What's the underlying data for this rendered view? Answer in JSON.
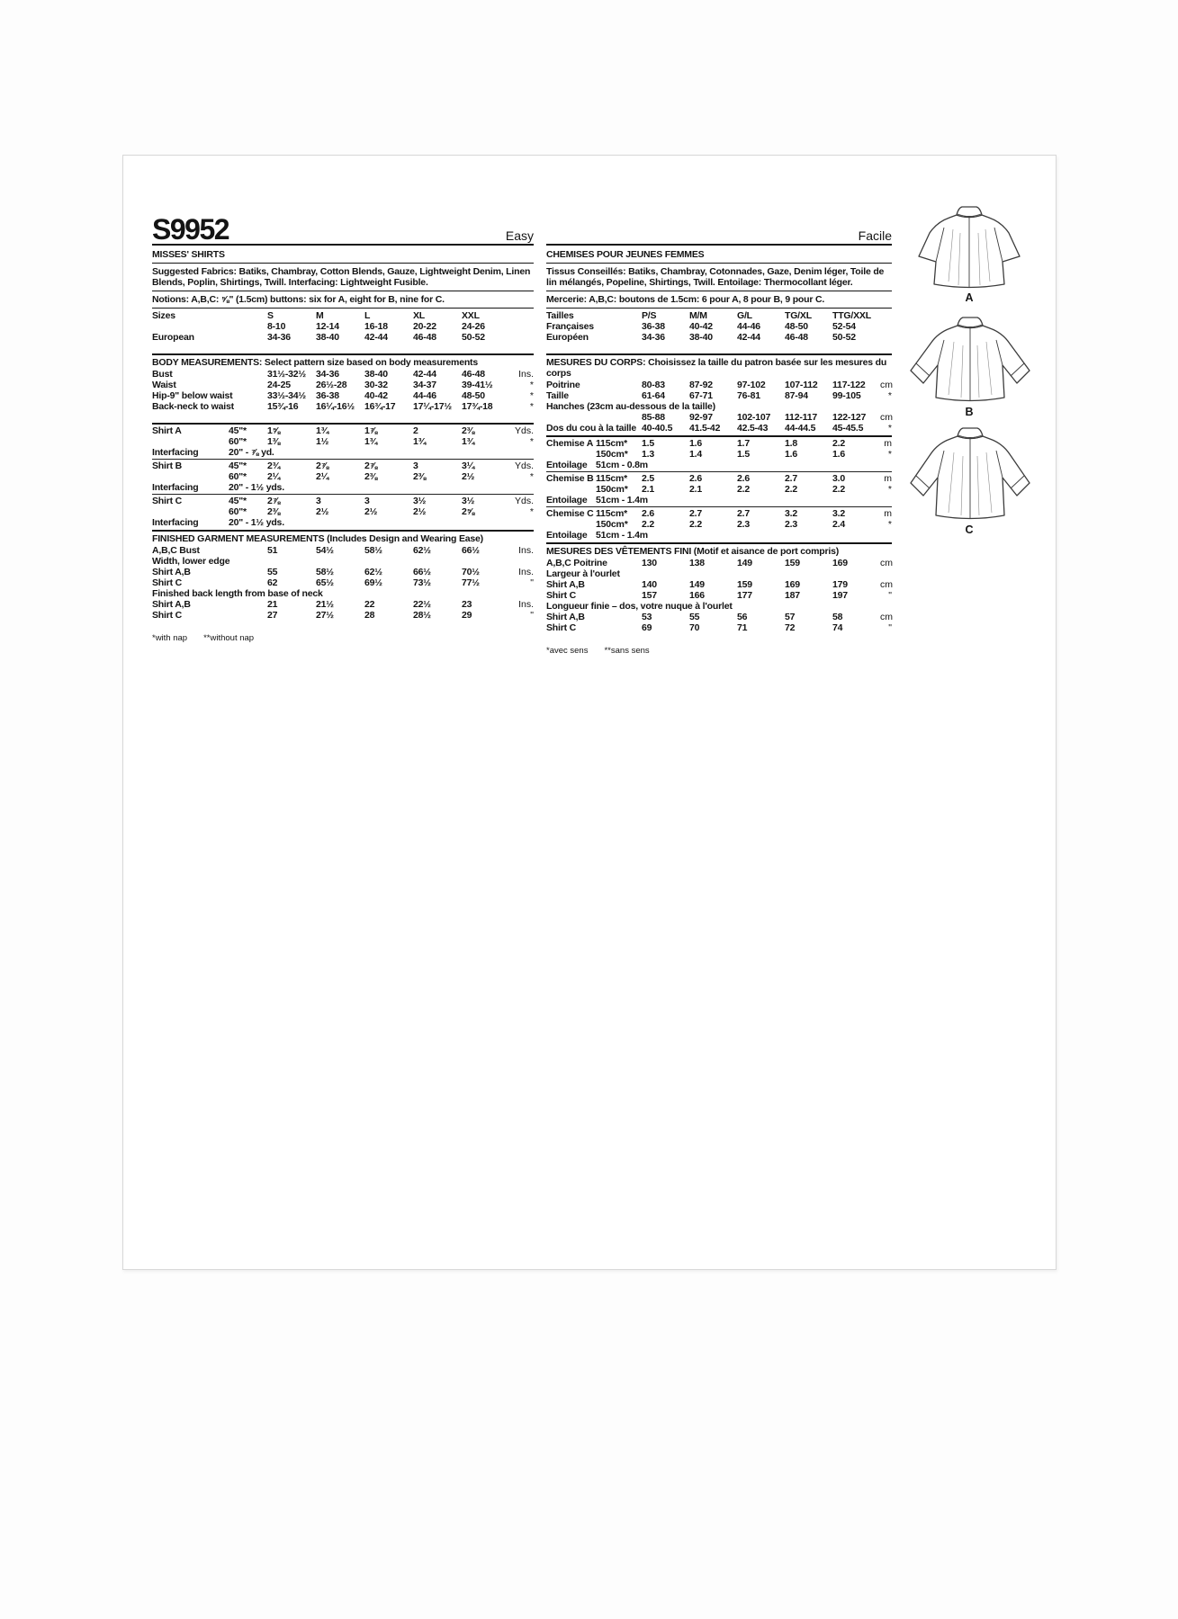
{
  "left": {
    "sku": "S9952",
    "difficulty": "Easy",
    "heading": "MISSES' SHIRTS",
    "fabrics": "Suggested Fabrics: Batiks, Chambray, Cotton Blends, Gauze, Lightweight Denim, Linen Blends, Poplin, Shirtings, Twill. Interfacing: Lightweight Fusible.",
    "notions": "Notions: A,B,C: ⅝\" (1.5cm) buttons: six for A, eight for B, nine for C.",
    "rows": [
      {
        "label": "Sizes",
        "cols": [
          "S",
          "M",
          "L",
          "XL",
          "XXL"
        ],
        "unit": ""
      },
      {
        "label": "",
        "cols": [
          "8-10",
          "12-14",
          "16-18",
          "20-22",
          "24-26"
        ],
        "unit": ""
      },
      {
        "label": "European",
        "cols": [
          "34-36",
          "38-40",
          "42-44",
          "46-48",
          "50-52"
        ],
        "unit": ""
      },
      {
        "t": "gap"
      },
      {
        "t": "rule2"
      },
      {
        "t": "head",
        "text": "BODY MEASUREMENTS: Select pattern size based on body measurements"
      },
      {
        "label": "Bust",
        "cols": [
          "31½-32½",
          "34-36",
          "38-40",
          "42-44",
          "46-48"
        ],
        "unit": "Ins."
      },
      {
        "label": "Waist",
        "cols": [
          "24-25",
          "26½-28",
          "30-32",
          "34-37",
          "39-41½"
        ],
        "unit": "*"
      },
      {
        "label": "Hip-9\" below waist",
        "cols": [
          "33½-34½",
          "36-38",
          "40-42",
          "44-46",
          "48-50"
        ],
        "unit": "*"
      },
      {
        "label": "Back-neck to waist",
        "cols": [
          "15¾-16",
          "16¼-16½",
          "16¾-17",
          "17¼-17½",
          "17¾-18"
        ],
        "unit": "*"
      },
      {
        "t": "gap"
      },
      {
        "t": "rule2"
      },
      {
        "label": "Shirt A",
        "sub": "45\"*",
        "cols": [
          "1⅝",
          "1¾",
          "1⅞",
          "2",
          "2⅜"
        ],
        "unit": "Yds."
      },
      {
        "label": "",
        "sub": "60\"*",
        "cols": [
          "1⅜",
          "1½",
          "1¾",
          "1¾",
          "1¾"
        ],
        "unit": "*"
      },
      {
        "t": "inter",
        "label": "Interfacing",
        "text": "20\" - ⅞ yd."
      },
      {
        "t": "rule"
      },
      {
        "label": "Shirt B",
        "sub": "45\"*",
        "cols": [
          "2¾",
          "2⅞",
          "2⅞",
          "3",
          "3¼"
        ],
        "unit": "Yds."
      },
      {
        "label": "",
        "sub": "60\"*",
        "cols": [
          "2¼",
          "2¼",
          "2⅜",
          "2⅜",
          "2½"
        ],
        "unit": "*"
      },
      {
        "t": "inter",
        "label": "Interfacing",
        "text": "20\" - 1½ yds."
      },
      {
        "t": "rule"
      },
      {
        "label": "Shirt C",
        "sub": "45\"*",
        "cols": [
          "2⅞",
          "3",
          "3",
          "3½",
          "3½"
        ],
        "unit": "Yds."
      },
      {
        "label": "",
        "sub": "60\"*",
        "cols": [
          "2⅜",
          "2½",
          "2½",
          "2½",
          "2⅝"
        ],
        "unit": "*"
      },
      {
        "t": "inter",
        "label": "Interfacing",
        "text": "20\" - 1½ yds."
      },
      {
        "t": "rule2"
      },
      {
        "t": "head",
        "text": "FINISHED GARMENT MEASUREMENTS (Includes Design and Wearing Ease)"
      },
      {
        "label": "A,B,C Bust",
        "cols": [
          "51",
          "54½",
          "58½",
          "62½",
          "66½"
        ],
        "unit": "Ins."
      },
      {
        "t": "full",
        "label": "Width, lower edge"
      },
      {
        "label": "Shirt A,B",
        "cols": [
          "55",
          "58½",
          "62½",
          "66½",
          "70½"
        ],
        "unit": "Ins."
      },
      {
        "label": "Shirt C",
        "cols": [
          "62",
          "65½",
          "69½",
          "73½",
          "77½"
        ],
        "unit": "\""
      },
      {
        "t": "full",
        "label": "Finished back length from base of neck"
      },
      {
        "label": "Shirt A,B",
        "cols": [
          "21",
          "21½",
          "22",
          "22½",
          "23"
        ],
        "unit": "Ins."
      },
      {
        "label": "Shirt C",
        "cols": [
          "27",
          "27½",
          "28",
          "28½",
          "29"
        ],
        "unit": "\""
      }
    ],
    "footnote1": "*with nap",
    "footnote2": "**without nap"
  },
  "right": {
    "difficulty": "Facile",
    "heading": "CHEMISES POUR JEUNES FEMMES",
    "fabrics": "Tissus Conseillés: Batiks, Chambray, Cotonnades, Gaze, Denim léger, Toile de lin mélangés, Popeline, Shirtings, Twill. Entoilage: Thermocollant léger.",
    "notions": "Mercerie: A,B,C: boutons de 1.5cm: 6 pour A, 8 pour B, 9 pour C.",
    "rows": [
      {
        "label": "Tailles",
        "cols": [
          "P/S",
          "M/M",
          "G/L",
          "TG/XL",
          "TTG/XXL"
        ],
        "unit": ""
      },
      {
        "label": "Françaises",
        "cols": [
          "36-38",
          "40-42",
          "44-46",
          "48-50",
          "52-54"
        ],
        "unit": ""
      },
      {
        "label": "Européen",
        "cols": [
          "34-36",
          "38-40",
          "42-44",
          "46-48",
          "50-52"
        ],
        "unit": ""
      },
      {
        "t": "gap"
      },
      {
        "t": "rule2"
      },
      {
        "t": "head",
        "text": "MESURES DU CORPS: Choisissez la taille du patron basée sur les mesures du corps"
      },
      {
        "label": "Poitrine",
        "cols": [
          "80-83",
          "87-92",
          "97-102",
          "107-112",
          "117-122"
        ],
        "unit": "cm"
      },
      {
        "label": "Taille",
        "cols": [
          "61-64",
          "67-71",
          "76-81",
          "87-94",
          "99-105"
        ],
        "unit": "*"
      },
      {
        "t": "full",
        "label": "Hanches (23cm au-dessous de la taille)"
      },
      {
        "label": "",
        "cols": [
          "85-88",
          "92-97",
          "102-107",
          "112-117",
          "122-127"
        ],
        "unit": "cm"
      },
      {
        "label": "Dos du cou à la taille",
        "cols": [
          "40-40.5",
          "41.5-42",
          "42.5-43",
          "44-44.5",
          "45-45.5"
        ],
        "unit": "*"
      },
      {
        "t": "rule2"
      },
      {
        "label": "Chemise A",
        "sub": "115cm*",
        "cols": [
          "1.5",
          "1.6",
          "1.7",
          "1.8",
          "2.2"
        ],
        "unit": "m"
      },
      {
        "label": "",
        "sub": "150cm*",
        "cols": [
          "1.3",
          "1.4",
          "1.5",
          "1.6",
          "1.6"
        ],
        "unit": "*"
      },
      {
        "t": "inter",
        "label": "Entoilage",
        "text": "51cm - 0.8m"
      },
      {
        "t": "rule"
      },
      {
        "label": "Chemise B",
        "sub": "115cm*",
        "cols": [
          "2.5",
          "2.6",
          "2.6",
          "2.7",
          "3.0"
        ],
        "unit": "m"
      },
      {
        "label": "",
        "sub": "150cm*",
        "cols": [
          "2.1",
          "2.1",
          "2.2",
          "2.2",
          "2.2"
        ],
        "unit": "*"
      },
      {
        "t": "inter",
        "label": "Entoilage",
        "text": "51cm - 1.4m"
      },
      {
        "t": "rule"
      },
      {
        "label": "Chemise C",
        "sub": "115cm*",
        "cols": [
          "2.6",
          "2.7",
          "2.7",
          "3.2",
          "3.2"
        ],
        "unit": "m"
      },
      {
        "label": "",
        "sub": "150cm*",
        "cols": [
          "2.2",
          "2.2",
          "2.3",
          "2.3",
          "2.4"
        ],
        "unit": "*"
      },
      {
        "t": "inter",
        "label": "Entoilage",
        "text": "51cm - 1.4m"
      },
      {
        "t": "rule2"
      },
      {
        "t": "head",
        "text": "MESURES DES VÊTEMENTS FINI (Motif et aisance de port compris)"
      },
      {
        "label": "A,B,C Poitrine",
        "cols": [
          "130",
          "138",
          "149",
          "159",
          "169"
        ],
        "unit": "cm"
      },
      {
        "t": "full",
        "label": "Largeur à l'ourlet"
      },
      {
        "label": "Shirt A,B",
        "cols": [
          "140",
          "149",
          "159",
          "169",
          "179"
        ],
        "unit": "cm"
      },
      {
        "label": "Shirt C",
        "cols": [
          "157",
          "166",
          "177",
          "187",
          "197"
        ],
        "unit": "\""
      },
      {
        "t": "full",
        "label": "Longueur finie – dos, votre nuque à l'ourlet"
      },
      {
        "label": "Shirt A,B",
        "cols": [
          "53",
          "55",
          "56",
          "57",
          "58"
        ],
        "unit": "cm"
      },
      {
        "label": "Shirt C",
        "cols": [
          "69",
          "70",
          "71",
          "72",
          "74"
        ],
        "unit": "\""
      }
    ],
    "footnote1": "*avec sens",
    "footnote2": "**sans sens"
  },
  "garments": {
    "a_label": "A",
    "b_label": "B",
    "c_label": "C"
  }
}
